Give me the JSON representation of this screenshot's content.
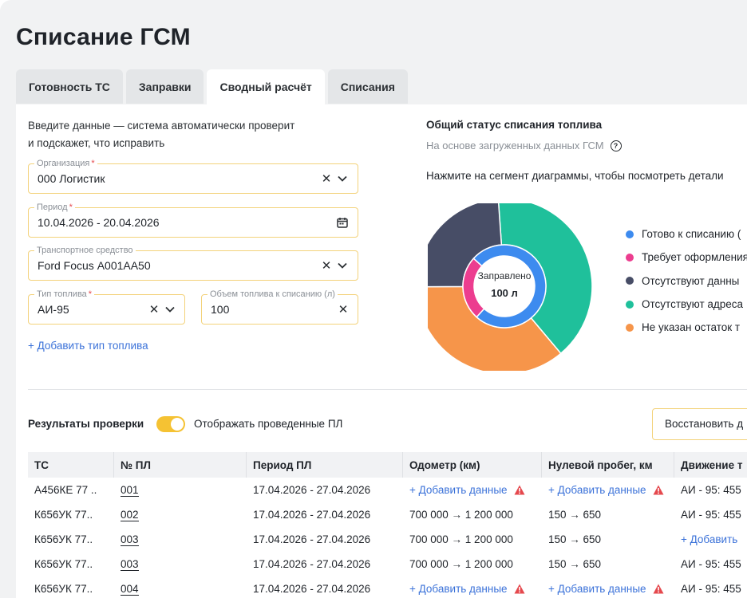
{
  "page": {
    "title": "Списание ГСМ"
  },
  "tabs": [
    {
      "label": "Готовность ТС",
      "active": false
    },
    {
      "label": "Заправки",
      "active": false
    },
    {
      "label": "Сводный расчёт",
      "active": true
    },
    {
      "label": "Списания",
      "active": false
    }
  ],
  "form": {
    "intro_line1": "Введите данные — система автоматически проверит",
    "intro_line2": "и подскажет, что исправить",
    "organization": {
      "label": "Организация",
      "value": "000 Логистик"
    },
    "period": {
      "label": "Период",
      "value": "10.04.2026 - 20.04.2026"
    },
    "vehicle": {
      "label": "Транспортное средство",
      "value": "Ford Focus А001АА50"
    },
    "fuel_type": {
      "label": "Тип топлива",
      "value": "АИ-95"
    },
    "fuel_volume": {
      "label": "Объем топлива к списанию (л)",
      "value": "100"
    },
    "required_mark": "*",
    "add_fuel_label": "+ Добавить тип топлива"
  },
  "status": {
    "title": "Общий статус списания топлива",
    "subtitle": "На основе загруженных данных ГСМ",
    "hint": "Нажмите на сегмент диаграммы, чтобы посмотреть детали",
    "center_label": "Заправлено",
    "center_value": "100 л",
    "legend": [
      {
        "label": "Готово к списанию (",
        "color": "#3d8bef"
      },
      {
        "label": "Требует оформления",
        "color": "#ec3d8f"
      },
      {
        "label": "Отсутствуют данны",
        "color": "#474d66"
      },
      {
        "label": "Отсутствуют адреса",
        "color": "#1fc09b"
      },
      {
        "label": "Не указан остаток т",
        "color": "#f6954a"
      }
    ]
  },
  "chart_data": {
    "type": "pie",
    "outer_ring": [
      {
        "color": "#1fc09b",
        "value": 40
      },
      {
        "color": "#f6954a",
        "value": 36
      },
      {
        "color": "#474d66",
        "value": 24
      }
    ],
    "inner_ring": [
      {
        "color": "#3d8bef",
        "value": 75
      },
      {
        "color": "#ec3d8f",
        "value": 25
      }
    ]
  },
  "results": {
    "title": "Результаты проверки",
    "toggle_label": "Отображать проведенные ПЛ",
    "toggle_on": true,
    "restore_button": "Восстановить д"
  },
  "table": {
    "columns": [
      "ТС",
      "№ ПЛ",
      "Период ПЛ",
      "Одометр (км)",
      "Нулевой пробег, км",
      "Движение т"
    ],
    "add_data_label": "+ Добавить данные",
    "add_short_label": "+ Добавить",
    "rows": [
      {
        "vehicle": "А456КЕ 77 ..",
        "num": "001",
        "period": "17.04.2026 - 27.04.2026",
        "odometer": "",
        "odometer_missing": true,
        "zero": "",
        "zero_missing": true,
        "movement": "АИ - 95: 455",
        "movement_missing": false
      },
      {
        "vehicle": "К656УК 77..",
        "num": "002",
        "period": "17.04.2026 - 27.04.2026",
        "odometer": "700 000 → 1 200 000",
        "odometer_missing": false,
        "zero": "150 → 650",
        "zero_missing": false,
        "movement": "АИ - 95: 455",
        "movement_missing": false
      },
      {
        "vehicle": "К656УК 77..",
        "num": "003",
        "period": "17.04.2026 - 27.04.2026",
        "odometer": "700 000 → 1 200 000",
        "odometer_missing": false,
        "zero": "150 → 650",
        "zero_missing": false,
        "movement": "",
        "movement_missing": true
      },
      {
        "vehicle": "К656УК 77..",
        "num": "003",
        "period": "17.04.2026 - 27.04.2026",
        "odometer": "700 000 → 1 200 000",
        "odometer_missing": false,
        "zero": "150 → 650",
        "zero_missing": false,
        "movement": "АИ - 95: 455",
        "movement_missing": false
      },
      {
        "vehicle": "К656УК 77..",
        "num": "004",
        "period": "17.04.2026 - 27.04.2026",
        "odometer": "",
        "odometer_missing": true,
        "zero": "",
        "zero_missing": true,
        "movement": "АИ - 95: 455",
        "movement_missing": false
      }
    ]
  }
}
